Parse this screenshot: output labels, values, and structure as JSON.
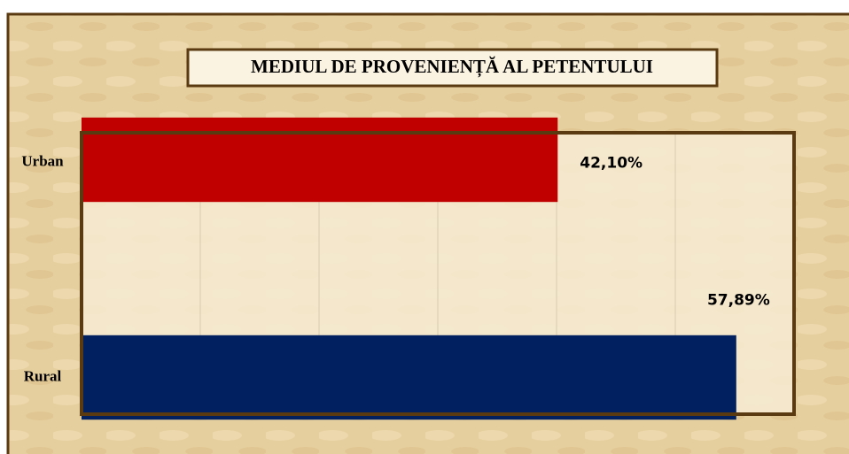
{
  "chart_data": {
    "type": "bar",
    "orientation": "horizontal",
    "title": "MEDIUL DE PROVENIENȚĂ AL PETENTULUI",
    "categories": [
      "Urban",
      "Rural"
    ],
    "values": [
      42.1,
      57.89
    ],
    "value_labels": [
      "42,10%",
      "57,89%"
    ],
    "colors": [
      "#c00000",
      "#002060"
    ],
    "xlim": [
      0,
      63
    ],
    "xticks": [
      10.5,
      21,
      31.5,
      42,
      52.5
    ],
    "grid": true
  }
}
